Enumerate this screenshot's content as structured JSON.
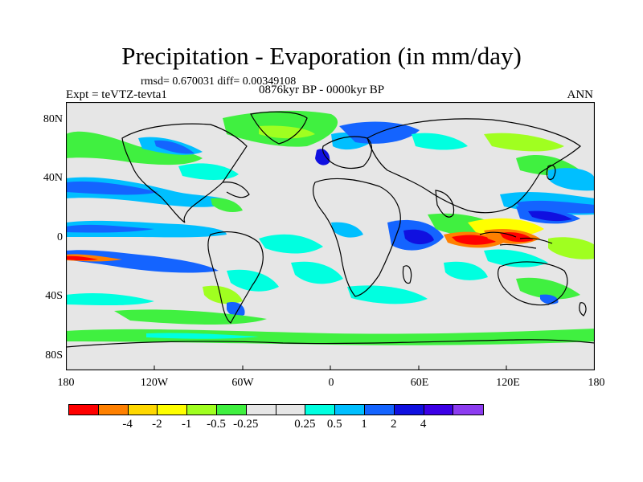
{
  "title": "Precipitation - Evaporation (in mm/day)",
  "stats": "rmsd= 0.670031 diff= 0.00349108",
  "experiment": "Expt = teVTZ-tevta1",
  "period": "0876kyr BP - 0000kyr BP",
  "season": "ANN",
  "lat_labels": [
    "80N",
    "40N",
    "0",
    "40S",
    "80S"
  ],
  "lon_labels": [
    "180",
    "120W",
    "60W",
    "0",
    "60E",
    "120E",
    "180"
  ],
  "colorbar": {
    "colors": [
      "#ff0000",
      "#ff8000",
      "#ffd800",
      "#ffff00",
      "#a0ff20",
      "#40f040",
      "#e6e6e6",
      "#e6e6e6",
      "#00ffe0",
      "#00bfff",
      "#1464ff",
      "#1010e0",
      "#3c00e6",
      "#8c3cf0"
    ],
    "labels": [
      "-4",
      "-2",
      "-1",
      "-0.5",
      "-0.25",
      "0.25",
      "0.5",
      "1",
      "2",
      "4"
    ]
  }
}
